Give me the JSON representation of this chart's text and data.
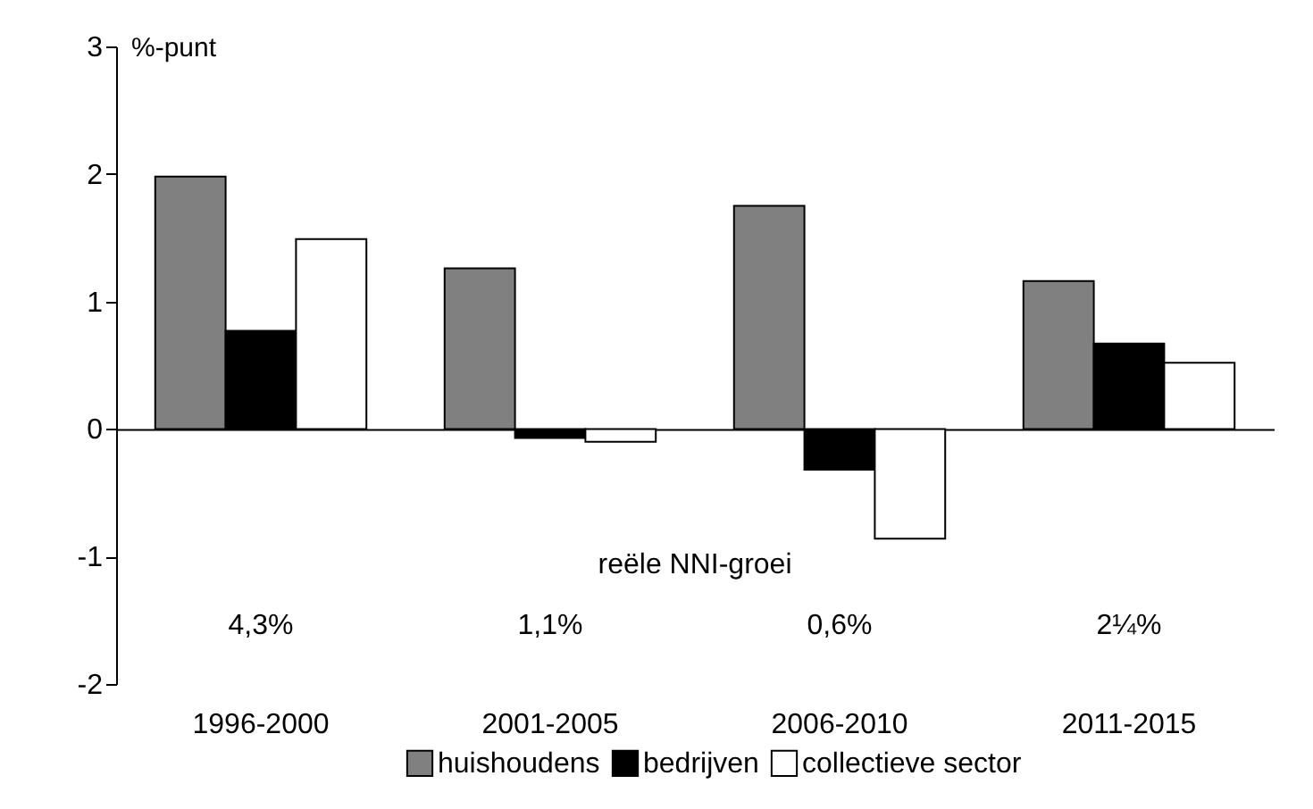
{
  "chart_data": {
    "type": "bar",
    "ylabel": "%-punt",
    "categories": [
      "1996-2000",
      "2001-2005",
      "2006-2010",
      "2011-2015"
    ],
    "series": [
      {
        "name": "huishoudens",
        "color": "#808080",
        "values": [
          1.98,
          1.26,
          1.75,
          1.16
        ]
      },
      {
        "name": "bedrijven",
        "color": "#000000",
        "values": [
          0.77,
          -0.07,
          -0.32,
          0.67
        ]
      },
      {
        "name": "collectieve sector",
        "color": "#ffffff",
        "values": [
          1.49,
          -0.1,
          -0.86,
          0.52
        ]
      }
    ],
    "ylim": [
      -2,
      3
    ],
    "yticks": [
      -2,
      -1,
      0,
      1,
      2,
      3
    ],
    "legend": "bottom",
    "annotations": [
      "reële NNI-groei",
      "4,3%",
      "1,1%",
      "0,6%",
      "2¼%"
    ]
  }
}
